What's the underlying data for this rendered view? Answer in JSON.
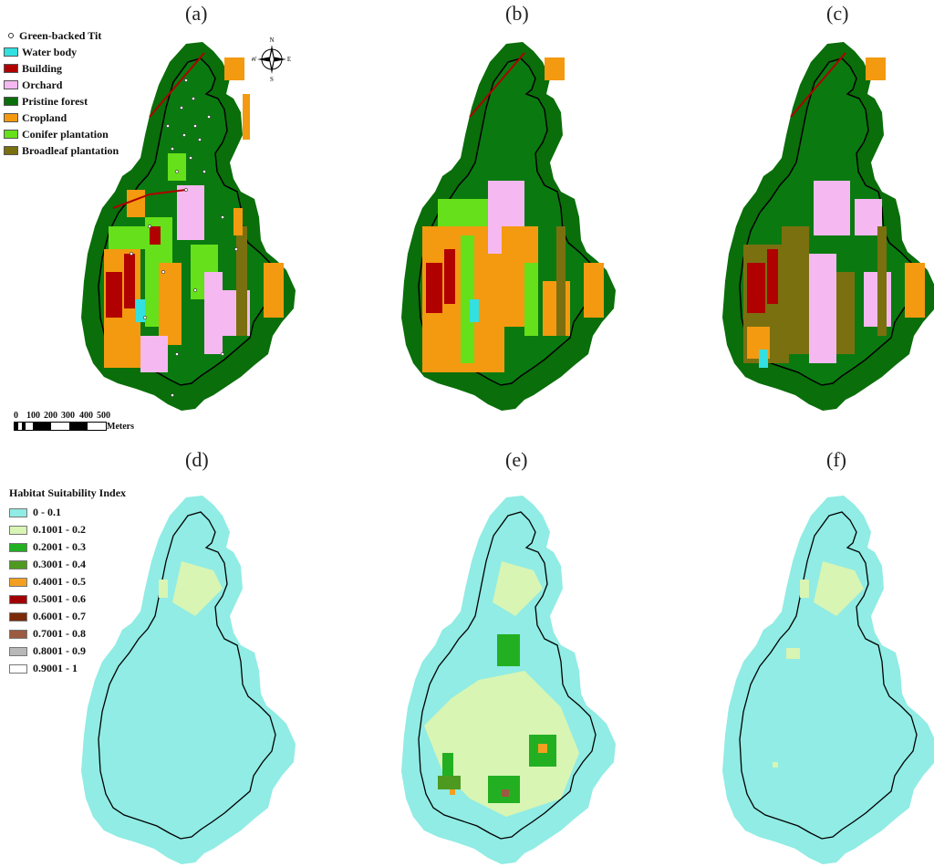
{
  "panel_labels": [
    "(a)",
    "(b)",
    "(c)",
    "(d)",
    "(e)",
    "(f)"
  ],
  "landuse_legend": {
    "point_label": "Green-backed Tit",
    "items": [
      {
        "label": "Water body",
        "color": "#33e0e0"
      },
      {
        "label": "Building",
        "color": "#b00000"
      },
      {
        "label": "Orchard",
        "color": "#f5b8f0"
      },
      {
        "label": "Pristine forest",
        "color": "#0a6e0a"
      },
      {
        "label": "Cropland",
        "color": "#f39a10"
      },
      {
        "label": "Conifer plantation",
        "color": "#66e01a"
      },
      {
        "label": "Broadleaf plantation",
        "color": "#7a7010"
      }
    ]
  },
  "compass": {
    "n": "N",
    "s": "S",
    "e": "E",
    "w": "W"
  },
  "scale_bar": {
    "ticks": [
      "0",
      "100",
      "200",
      "300",
      "400",
      "500"
    ],
    "unit": "Meters"
  },
  "hsi_legend": {
    "title": "Habitat Suitability Index",
    "items": [
      {
        "label": "0 - 0.1",
        "color": "#90ece4"
      },
      {
        "label": "0.1001 - 0.2",
        "color": "#d8f5b4"
      },
      {
        "label": "0.2001 - 0.3",
        "color": "#22b022"
      },
      {
        "label": "0.3001 - 0.4",
        "color": "#4e9a20"
      },
      {
        "label": "0.4001 - 0.5",
        "color": "#f3a020"
      },
      {
        "label": "0.5001 - 0.6",
        "color": "#a00000"
      },
      {
        "label": "0.6001 - 0.7",
        "color": "#7a2a08"
      },
      {
        "label": "0.7001 - 0.8",
        "color": "#9c5a40"
      },
      {
        "label": "0.8001 - 0.9",
        "color": "#b8b8b8"
      },
      {
        "label": "0.9001 - 1",
        "color": "#ffffff"
      }
    ]
  }
}
